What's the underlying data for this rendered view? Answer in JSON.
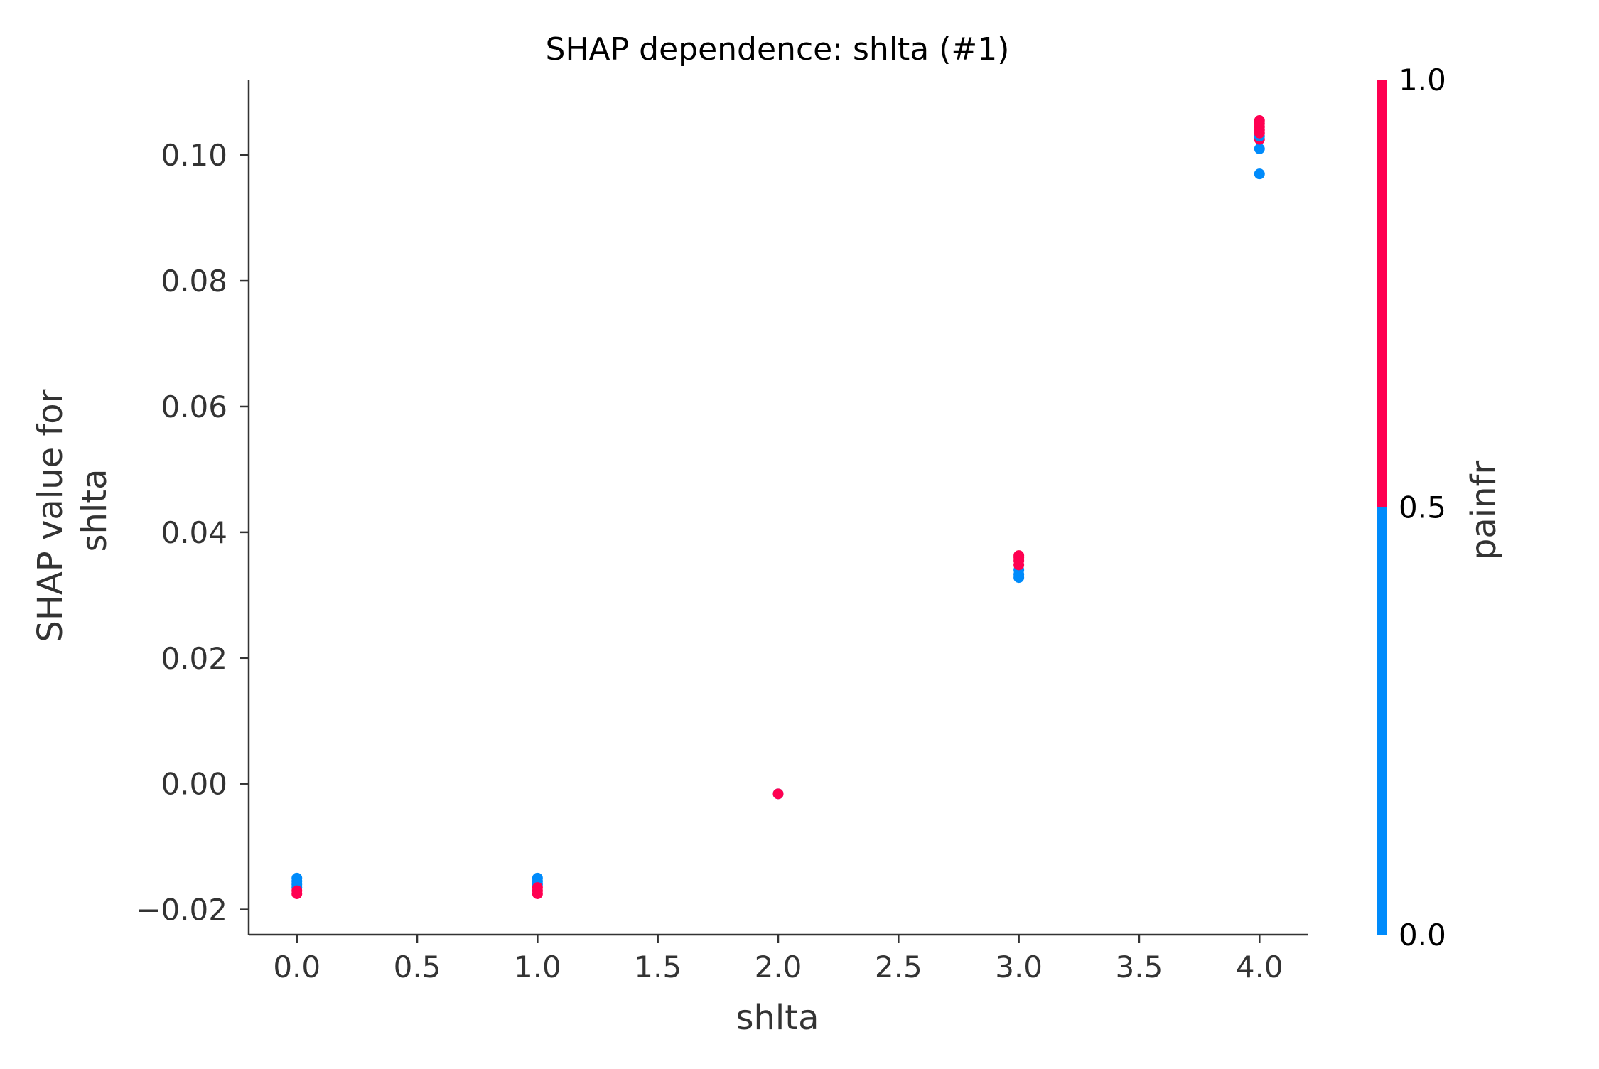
{
  "chart_data": {
    "type": "scatter",
    "title": "SHAP dependence: shlta (#1)",
    "xlabel": "shlta",
    "ylabel": [
      "SHAP value for",
      "shlta"
    ],
    "xlim": [
      -0.2,
      4.2
    ],
    "ylim": [
      -0.024,
      0.112
    ],
    "xticks": [
      0.0,
      0.5,
      1.0,
      1.5,
      2.0,
      2.5,
      3.0,
      3.5,
      4.0
    ],
    "xtick_labels": [
      "0.0",
      "0.5",
      "1.0",
      "1.5",
      "2.0",
      "2.5",
      "3.0",
      "3.5",
      "4.0"
    ],
    "yticks": [
      -0.02,
      0.0,
      0.02,
      0.04,
      0.06,
      0.08,
      0.1
    ],
    "ytick_labels": [
      "−0.02",
      "0.00",
      "0.02",
      "0.04",
      "0.06",
      "0.08",
      "0.10"
    ],
    "grid": false,
    "colorbar": {
      "label": "painfr",
      "range": [
        0.0,
        1.0
      ],
      "tick_labels": [
        "0.0",
        "0.5",
        "1.0"
      ],
      "low_color": "#008bfb",
      "high_color": "#ff0051"
    },
    "points": [
      {
        "x": 0.0,
        "y": -0.015,
        "c": 0
      },
      {
        "x": 0.0,
        "y": -0.0155,
        "c": 0
      },
      {
        "x": 0.0,
        "y": -0.016,
        "c": 0
      },
      {
        "x": 0.0,
        "y": -0.0165,
        "c": 0
      },
      {
        "x": 0.0,
        "y": -0.017,
        "c": 1
      },
      {
        "x": 0.0,
        "y": -0.0175,
        "c": 1
      },
      {
        "x": 1.0,
        "y": -0.015,
        "c": 0
      },
      {
        "x": 1.0,
        "y": -0.0155,
        "c": 0
      },
      {
        "x": 1.0,
        "y": -0.016,
        "c": 0
      },
      {
        "x": 1.0,
        "y": -0.0165,
        "c": 1
      },
      {
        "x": 1.0,
        "y": -0.017,
        "c": 1
      },
      {
        "x": 1.0,
        "y": -0.0175,
        "c": 1
      },
      {
        "x": 2.0,
        "y": -0.0016,
        "c": 0
      },
      {
        "x": 2.0,
        "y": -0.0016,
        "c": 1
      },
      {
        "x": 3.0,
        "y": 0.0328,
        "c": 0
      },
      {
        "x": 3.0,
        "y": 0.0333,
        "c": 0
      },
      {
        "x": 3.0,
        "y": 0.034,
        "c": 0
      },
      {
        "x": 3.0,
        "y": 0.0348,
        "c": 1
      },
      {
        "x": 3.0,
        "y": 0.0355,
        "c": 1
      },
      {
        "x": 3.0,
        "y": 0.036,
        "c": 1
      },
      {
        "x": 3.0,
        "y": 0.0363,
        "c": 1
      },
      {
        "x": 4.0,
        "y": 0.097,
        "c": 0
      },
      {
        "x": 4.0,
        "y": 0.101,
        "c": 0
      },
      {
        "x": 4.0,
        "y": 0.1025,
        "c": 1
      },
      {
        "x": 4.0,
        "y": 0.103,
        "c": 0
      },
      {
        "x": 4.0,
        "y": 0.1035,
        "c": 1
      },
      {
        "x": 4.0,
        "y": 0.104,
        "c": 1
      },
      {
        "x": 4.0,
        "y": 0.1045,
        "c": 1
      },
      {
        "x": 4.0,
        "y": 0.105,
        "c": 1
      },
      {
        "x": 4.0,
        "y": 0.1055,
        "c": 1
      }
    ]
  }
}
